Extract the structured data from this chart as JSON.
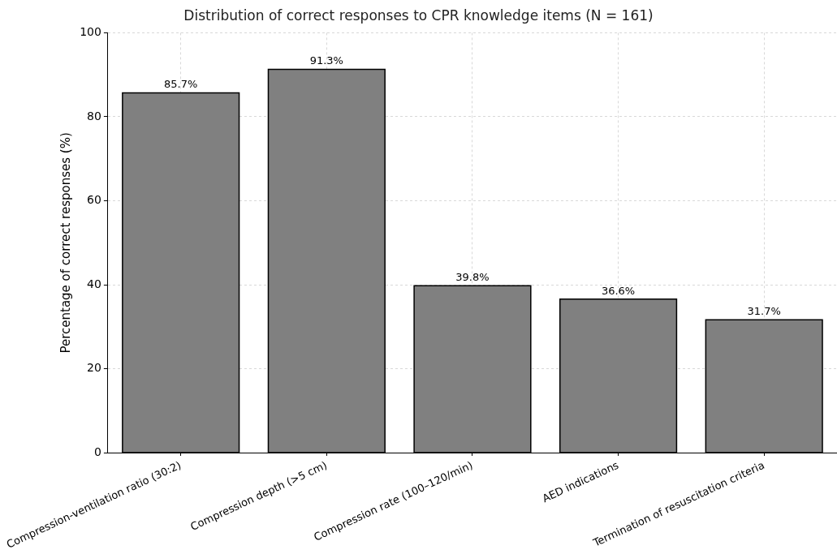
{
  "chart_data": {
    "type": "bar",
    "title": "Distribution of correct responses to CPR knowledge items (N = 161)",
    "ylabel": "Percentage of correct responses (%)",
    "categories": [
      "Compression-ventilation ratio (30:2)",
      "Compression depth (>5 cm)",
      "Compression rate (100–120/min)",
      "AED indications",
      "Termination of resuscitation criteria"
    ],
    "values": [
      85.7,
      91.3,
      39.8,
      36.6,
      31.7
    ],
    "value_labels": [
      "85.7%",
      "91.3%",
      "39.8%",
      "36.6%",
      "31.7%"
    ],
    "color": "#808080",
    "ylim": [
      0,
      100
    ],
    "yticks": [
      0,
      20,
      40,
      60,
      80,
      100
    ],
    "grid": true,
    "legend": false
  }
}
